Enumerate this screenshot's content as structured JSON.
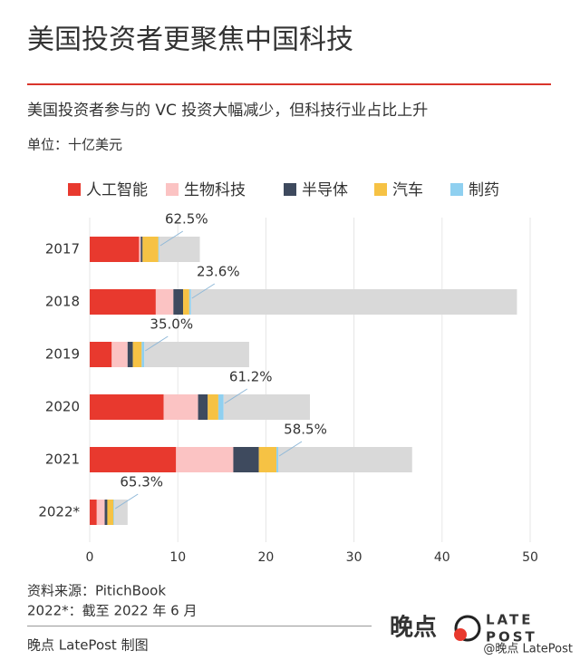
{
  "chart_data": {
    "type": "stacked_barh",
    "title": "美国投资者更聚焦中国科技",
    "subtitle": "美国投资者参与的 VC 投资大幅减少，但科技行业占比上升",
    "unit_label": "单位：十亿美元",
    "categories": [
      "2017",
      "2018",
      "2019",
      "2020",
      "2021",
      "2022*"
    ],
    "series": [
      {
        "name": "人工智能",
        "color": "#e8392e",
        "values": [
          5.6,
          7.5,
          2.5,
          8.4,
          9.8,
          0.8
        ]
      },
      {
        "name": "生物科技",
        "color": "#fbc3c3",
        "values": [
          0.2,
          2.0,
          1.8,
          3.9,
          6.5,
          0.9
        ]
      },
      {
        "name": "半导体",
        "color": "#3e4a5e",
        "values": [
          0.2,
          1.1,
          0.6,
          1.1,
          2.9,
          0.3
        ]
      },
      {
        "name": "汽车",
        "color": "#f6c244",
        "values": [
          1.8,
          0.7,
          1.0,
          1.2,
          2.0,
          0.7
        ]
      },
      {
        "name": "制药",
        "color": "#8fd0f0",
        "values": [
          0.1,
          0.2,
          0.3,
          0.6,
          0.2,
          0.1
        ]
      },
      {
        "color": "#d9d9d9",
        "values": [
          4.6,
          37.0,
          11.9,
          9.8,
          15.2,
          1.5
        ]
      }
    ],
    "annotations": [
      "62.5%",
      "23.6%",
      "35.0%",
      "61.2%",
      "58.5%",
      "65.3%"
    ],
    "xlim": [
      0,
      50
    ],
    "xticks": [
      0,
      10,
      20,
      30,
      40,
      50
    ],
    "grid": true,
    "source": "资料来源：PitichBook",
    "note": "2022*：截至 2022 年 6 月",
    "credit": "晚点 LatePost 制图",
    "logo_cn": "晚点",
    "logo_en_1": "LATE",
    "logo_en_2": "POST",
    "watermark": "@晚点 LatePost"
  }
}
